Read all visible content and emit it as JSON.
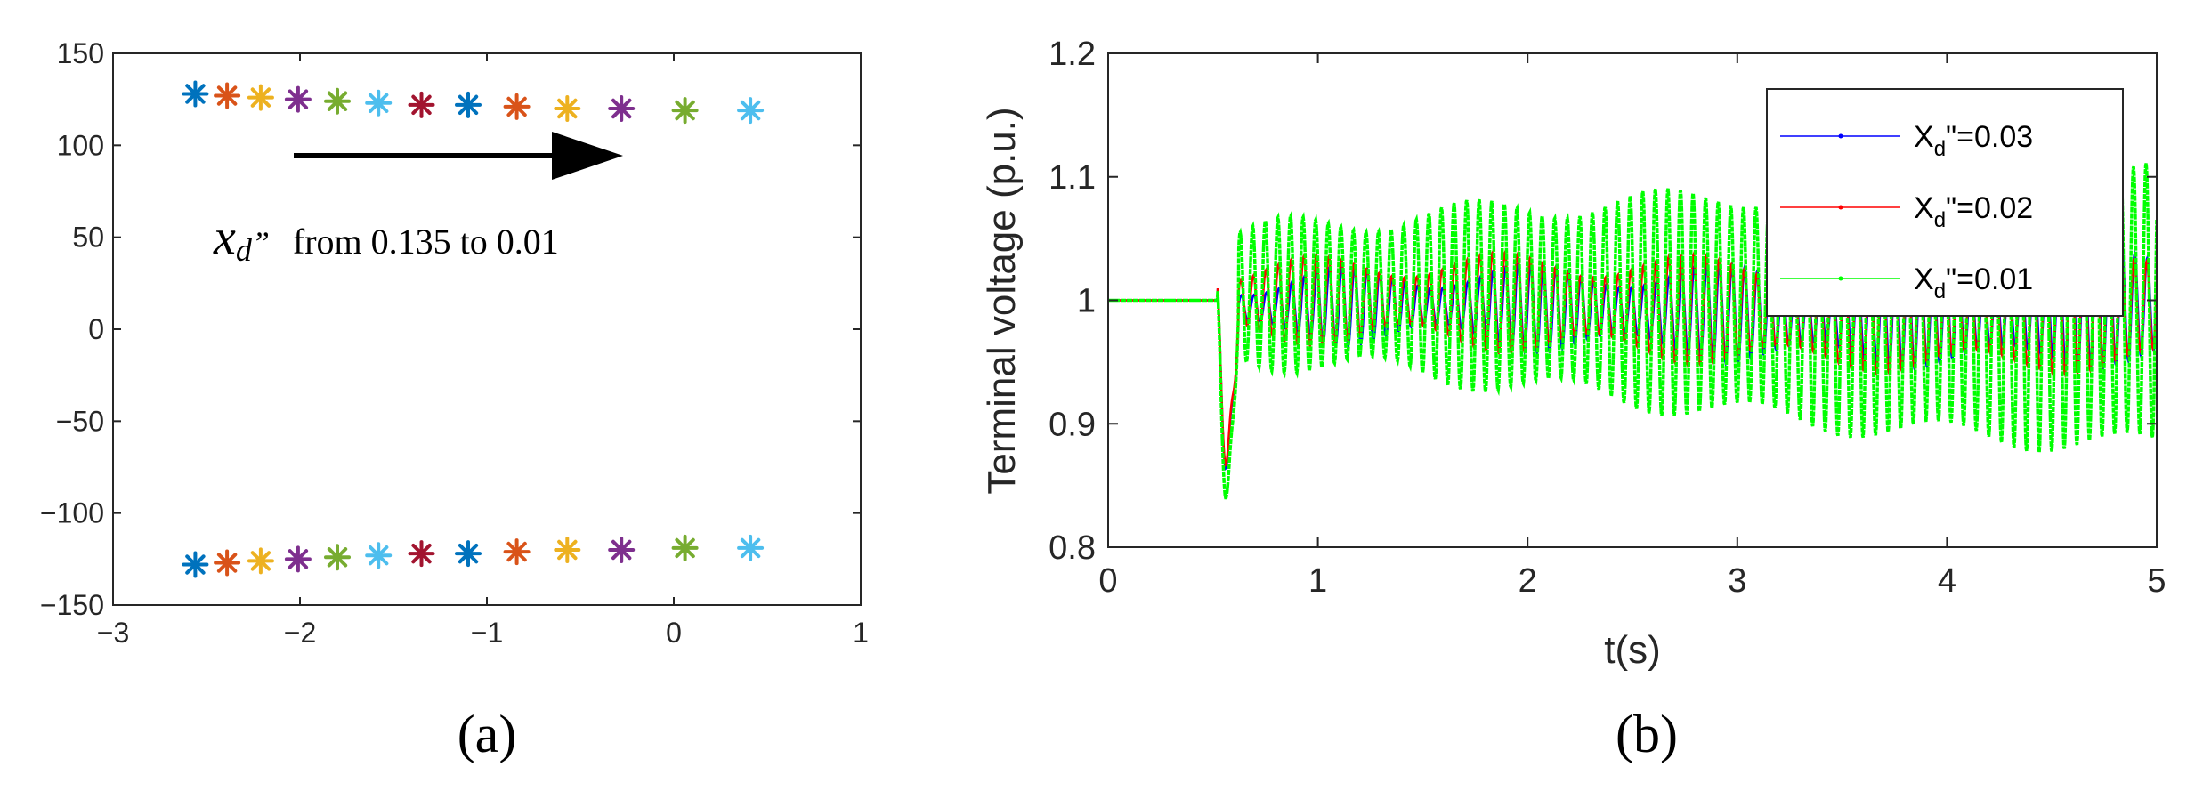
{
  "chart_data": [
    {
      "panel_label": "(a)",
      "type": "scatter",
      "xlim": [
        -3,
        1
      ],
      "ylim": [
        -150,
        150
      ],
      "xticks": [
        -3,
        -2,
        -1,
        0,
        1
      ],
      "yticks": [
        -150,
        -100,
        -50,
        0,
        50,
        100,
        150
      ],
      "grid": false,
      "marker": "asterisk",
      "annotation": {
        "symbol": "x",
        "subscript": "d",
        "prime": "”",
        "text": "from 0.135 to 0.01"
      },
      "colors": [
        "#0072bd",
        "#d95319",
        "#edb120",
        "#7e2f8e",
        "#77ac30",
        "#4dbeee",
        "#a2142f",
        "#0072bd",
        "#d95319",
        "#edb120",
        "#7e2f8e",
        "#77ac30",
        "#4dbeee"
      ],
      "points_upper": [
        [
          -2.56,
          128
        ],
        [
          -2.39,
          127
        ],
        [
          -2.21,
          126
        ],
        [
          -2.01,
          125
        ],
        [
          -1.8,
          124
        ],
        [
          -1.58,
          123
        ],
        [
          -1.35,
          122
        ],
        [
          -1.1,
          122
        ],
        [
          -0.84,
          121
        ],
        [
          -0.57,
          120
        ],
        [
          -0.28,
          120
        ],
        [
          0.06,
          119
        ],
        [
          0.41,
          119
        ]
      ],
      "points_lower": [
        [
          -2.56,
          -128
        ],
        [
          -2.39,
          -127
        ],
        [
          -2.21,
          -126
        ],
        [
          -2.01,
          -125
        ],
        [
          -1.8,
          -124
        ],
        [
          -1.58,
          -123
        ],
        [
          -1.35,
          -122
        ],
        [
          -1.1,
          -122
        ],
        [
          -0.84,
          -121
        ],
        [
          -0.57,
          -120
        ],
        [
          -0.28,
          -120
        ],
        [
          0.06,
          -119
        ],
        [
          0.41,
          -119
        ]
      ]
    },
    {
      "panel_label": "(b)",
      "type": "line",
      "xlabel": "t(s)",
      "ylabel": "Terminal voltage (p.u.)",
      "xlim": [
        0,
        5
      ],
      "ylim": [
        0.8,
        1.2
      ],
      "xticks": [
        0,
        1,
        2,
        3,
        4,
        5
      ],
      "yticks": [
        0.8,
        0.9,
        1,
        1.1,
        1.2
      ],
      "grid": false,
      "legend_position": "top-right",
      "series": [
        {
          "name": "X_d\"=0.03",
          "legend_base": "X",
          "legend_sub": "d",
          "legend_rest": "\"=0.03",
          "color": "#0000ff",
          "flat_value": 1.0,
          "disturbance_time": 0.5,
          "dip_min": 0.875,
          "osc_period": 0.06,
          "amp_start": 0.02,
          "amp_end": 0.04,
          "mean_start": 0.99,
          "mean_end": 0.995
        },
        {
          "name": "X_d\"=0.02",
          "legend_base": "X",
          "legend_sub": "d",
          "legend_rest": "\"=0.02",
          "color": "#ff0000",
          "flat_value": 1.0,
          "disturbance_time": 0.5,
          "dip_min": 0.878,
          "osc_period": 0.06,
          "amp_start": 0.025,
          "amp_end": 0.045,
          "mean_start": 0.995,
          "mean_end": 0.995
        },
        {
          "name": "X_d\"=0.01",
          "legend_base": "X",
          "legend_sub": "d",
          "legend_rest": "\"=0.01",
          "color": "#00ff00",
          "flat_value": 1.0,
          "disturbance_time": 0.5,
          "dip_min": 0.85,
          "osc_period": 0.06,
          "amp_start": 0.05,
          "amp_end": 0.12,
          "mean_start": 1.0,
          "mean_end": 1.0
        }
      ]
    }
  ]
}
